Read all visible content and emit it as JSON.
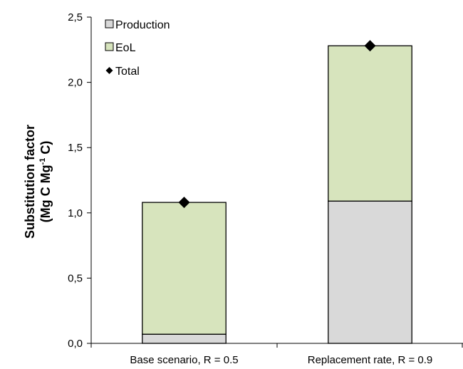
{
  "chart_data": {
    "type": "bar",
    "stacked": true,
    "categories": [
      "Base scenario, R = 0.5",
      "Replacement rate, R = 0.9"
    ],
    "series": [
      {
        "name": "Production",
        "type": "bar",
        "color": "#d9d9d9",
        "values": [
          0.07,
          1.09
        ]
      },
      {
        "name": "EoL",
        "type": "bar",
        "color": "#d7e4bd",
        "values": [
          1.01,
          1.19
        ]
      },
      {
        "name": "Total",
        "type": "marker",
        "color": "#000000",
        "marker": "diamond",
        "values": [
          1.08,
          2.28
        ]
      }
    ],
    "ylabel_line1": "Substitution factor",
    "ylabel_line2_main": "(Mg C Mg",
    "ylabel_line2_sup": "-1",
    "ylabel_line2_end": " C)",
    "ylim": [
      0,
      2.5
    ],
    "yticks": [
      "0,0",
      "0,5",
      "1,0",
      "1,5",
      "2,0",
      "2,5"
    ],
    "ytick_values": [
      0,
      0.5,
      1.0,
      1.5,
      2.0,
      2.5
    ],
    "grid": false,
    "legend_position": "top-left"
  }
}
